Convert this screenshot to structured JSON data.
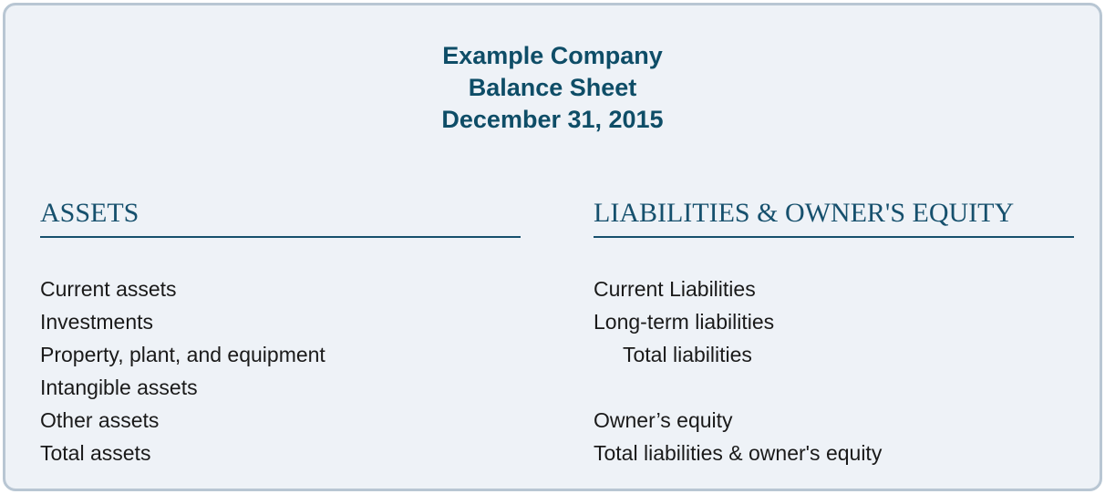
{
  "header": {
    "company": "Example Company",
    "report": "Balance Sheet",
    "date": "December 31, 2015"
  },
  "assets": {
    "heading": "ASSETS",
    "items": [
      "Current assets",
      "Investments",
      "Property, plant, and equipment",
      "Intangible assets",
      "Other assets",
      "Total assets"
    ]
  },
  "liabilities": {
    "heading": "LIABILITIES & OWNER'S EQUITY",
    "items": [
      "Current Liabilities",
      "Long-term liabilities",
      "Total liabilities",
      "",
      "Owner’s equity",
      "Total liabilities & owner's equity"
    ]
  },
  "colors": {
    "title_text": "#0e4d67",
    "heading_text": "#16506d",
    "underline": "#16506d",
    "body_text": "#1a1a1a",
    "card_border": "#b8c6d3",
    "card_background": "#eef2f7"
  }
}
